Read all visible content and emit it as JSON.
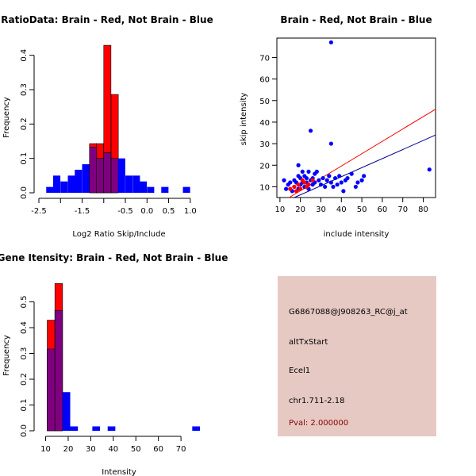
{
  "colors": {
    "red": "#ff0000",
    "blue": "#0000ff",
    "overlap": "#7f007f",
    "navy": "#00008b",
    "panel_bg": "#e6c9c3",
    "pval_text": "#8b0000"
  },
  "chart_data": [
    {
      "id": "ratio",
      "type": "bar",
      "title": "RatioData: Brain - Red, Not Brain - Blue",
      "xlabel": "Log2 Ratio Skip/Include",
      "ylabel": "Frequency",
      "xlim": [
        -2.5,
        1.15
      ],
      "ylim": [
        0,
        0.45
      ],
      "xticks": [
        -2.5,
        -1.5,
        -0.5,
        0.0,
        0.5,
        1.0
      ],
      "xtick_labels": [
        "-2.5",
        "-1.5",
        "-0.5",
        "0.0",
        "0.5",
        "1.0"
      ],
      "xticks_minor": [
        -2.0,
        -1.0
      ],
      "yticks": [
        0.0,
        0.1,
        0.2,
        0.3,
        0.4
      ],
      "ytick_labels": [
        "0.0",
        "0.1",
        "0.2",
        "0.3",
        "0.4"
      ],
      "bin_width": 0.1667,
      "series": [
        {
          "name": "Not Brain",
          "color": "blue",
          "bins": [
            [
              -2.33,
              0.017
            ],
            [
              -2.17,
              0.05
            ],
            [
              -2.0,
              0.033
            ],
            [
              -1.83,
              0.05
            ],
            [
              -1.67,
              0.067
            ],
            [
              -1.5,
              0.083
            ],
            [
              -1.33,
              0.133
            ],
            [
              -1.17,
              0.1
            ],
            [
              -1.0,
              0.117
            ],
            [
              -0.83,
              0.1
            ],
            [
              -0.67,
              0.1
            ],
            [
              -0.5,
              0.05
            ],
            [
              -0.33,
              0.05
            ],
            [
              -0.17,
              0.033
            ],
            [
              0.0,
              0.017
            ],
            [
              0.33,
              0.017
            ],
            [
              0.83,
              0.017
            ]
          ]
        },
        {
          "name": "Brain",
          "color": "red",
          "bins": [
            [
              -1.33,
              0.143
            ],
            [
              -1.17,
              0.143
            ],
            [
              -1.0,
              0.429
            ],
            [
              -0.83,
              0.286
            ]
          ]
        }
      ]
    },
    {
      "id": "scatter",
      "type": "scatter",
      "title": "Brain - Red, Not Brain - Blue",
      "xlabel": "include intensity",
      "ylabel": "skip intensity",
      "xlim": [
        8.5,
        86
      ],
      "ylim": [
        5,
        79
      ],
      "xticks": [
        10,
        20,
        30,
        40,
        50,
        60,
        70,
        80
      ],
      "xtick_labels": [
        "10",
        "20",
        "30",
        "40",
        "50",
        "60",
        "70",
        "80"
      ],
      "yticks": [
        10,
        20,
        30,
        40,
        50,
        60,
        70
      ],
      "ytick_labels": [
        "10",
        "20",
        "30",
        "40",
        "50",
        "60",
        "70"
      ],
      "series": [
        {
          "name": "Not Brain",
          "color": "blue",
          "points": [
            [
              12,
              13
            ],
            [
              13,
              9
            ],
            [
              14,
              11
            ],
            [
              15,
              12
            ],
            [
              16,
              8
            ],
            [
              17,
              10
            ],
            [
              17,
              13
            ],
            [
              18,
              12
            ],
            [
              19,
              9
            ],
            [
              19,
              15
            ],
            [
              19,
              20
            ],
            [
              20,
              11
            ],
            [
              20,
              14
            ],
            [
              21,
              12
            ],
            [
              21,
              17
            ],
            [
              22,
              10
            ],
            [
              22,
              15
            ],
            [
              23,
              12
            ],
            [
              23,
              14
            ],
            [
              24,
              9
            ],
            [
              24,
              17
            ],
            [
              25,
              13
            ],
            [
              25,
              36
            ],
            [
              26,
              11
            ],
            [
              26,
              14
            ],
            [
              27,
              12
            ],
            [
              27,
              16
            ],
            [
              28,
              17
            ],
            [
              29,
              13
            ],
            [
              30,
              11
            ],
            [
              31,
              14
            ],
            [
              32,
              10
            ],
            [
              33,
              13
            ],
            [
              34,
              15
            ],
            [
              35,
              77
            ],
            [
              35,
              30
            ],
            [
              35,
              12
            ],
            [
              36,
              10
            ],
            [
              37,
              14
            ],
            [
              38,
              11
            ],
            [
              39,
              15
            ],
            [
              40,
              12
            ],
            [
              41,
              8
            ],
            [
              42,
              13
            ],
            [
              43,
              14
            ],
            [
              45,
              16
            ],
            [
              47,
              10
            ],
            [
              48,
              12
            ],
            [
              50,
              13
            ],
            [
              51,
              15
            ],
            [
              83,
              18
            ]
          ]
        },
        {
          "name": "Brain",
          "color": "red",
          "points": [
            [
              15,
              9
            ],
            [
              17,
              10
            ],
            [
              18,
              8
            ],
            [
              19,
              11
            ],
            [
              20,
              9
            ],
            [
              21,
              13
            ],
            [
              22,
              12
            ],
            [
              23,
              10
            ],
            [
              24,
              11
            ],
            [
              26,
              13
            ]
          ]
        }
      ],
      "fit_lines": [
        {
          "name": "Brain",
          "color": "red",
          "from": [
            14.5,
            5
          ],
          "to": [
            86,
            46
          ]
        },
        {
          "name": "Not Brain",
          "color": "navy",
          "from": [
            17,
            5
          ],
          "to": [
            86,
            34
          ]
        }
      ]
    },
    {
      "id": "gene",
      "type": "bar",
      "title": "Gene Itensity: Brain - Red, Not Brain - Blue",
      "xlabel": "Intensity",
      "ylabel": "Frequency",
      "xlim": [
        7,
        77
      ],
      "ylim": [
        0,
        0.6
      ],
      "xticks": [
        10,
        20,
        30,
        40,
        50,
        60,
        70
      ],
      "xtick_labels": [
        "10",
        "20",
        "30",
        "40",
        "50",
        "60",
        "70"
      ],
      "yticks": [
        0.0,
        0.1,
        0.2,
        0.3,
        0.4,
        0.5
      ],
      "ytick_labels": [
        "0.0",
        "0.1",
        "0.2",
        "0.3",
        "0.4",
        "0.5"
      ],
      "bin_width": 3.4,
      "series": [
        {
          "name": "Not Brain",
          "color": "blue",
          "bins": [
            [
              10.7,
              0.317
            ],
            [
              14.1,
              0.467
            ],
            [
              17.5,
              0.15
            ],
            [
              20.9,
              0.017
            ],
            [
              30.7,
              0.017
            ],
            [
              37.5,
              0.017
            ],
            [
              75,
              0.017
            ]
          ]
        },
        {
          "name": "Brain",
          "color": "red",
          "bins": [
            [
              10.7,
              0.429
            ],
            [
              14.1,
              0.571
            ]
          ]
        }
      ]
    }
  ],
  "info_panel": {
    "probe_id": "G6867088@J908263_RC@j_at",
    "event_type": "altTxStart",
    "gene_symbol": "Ecel1",
    "location": "chr1.711-2.18",
    "pval": "Pval: 2.000000"
  }
}
